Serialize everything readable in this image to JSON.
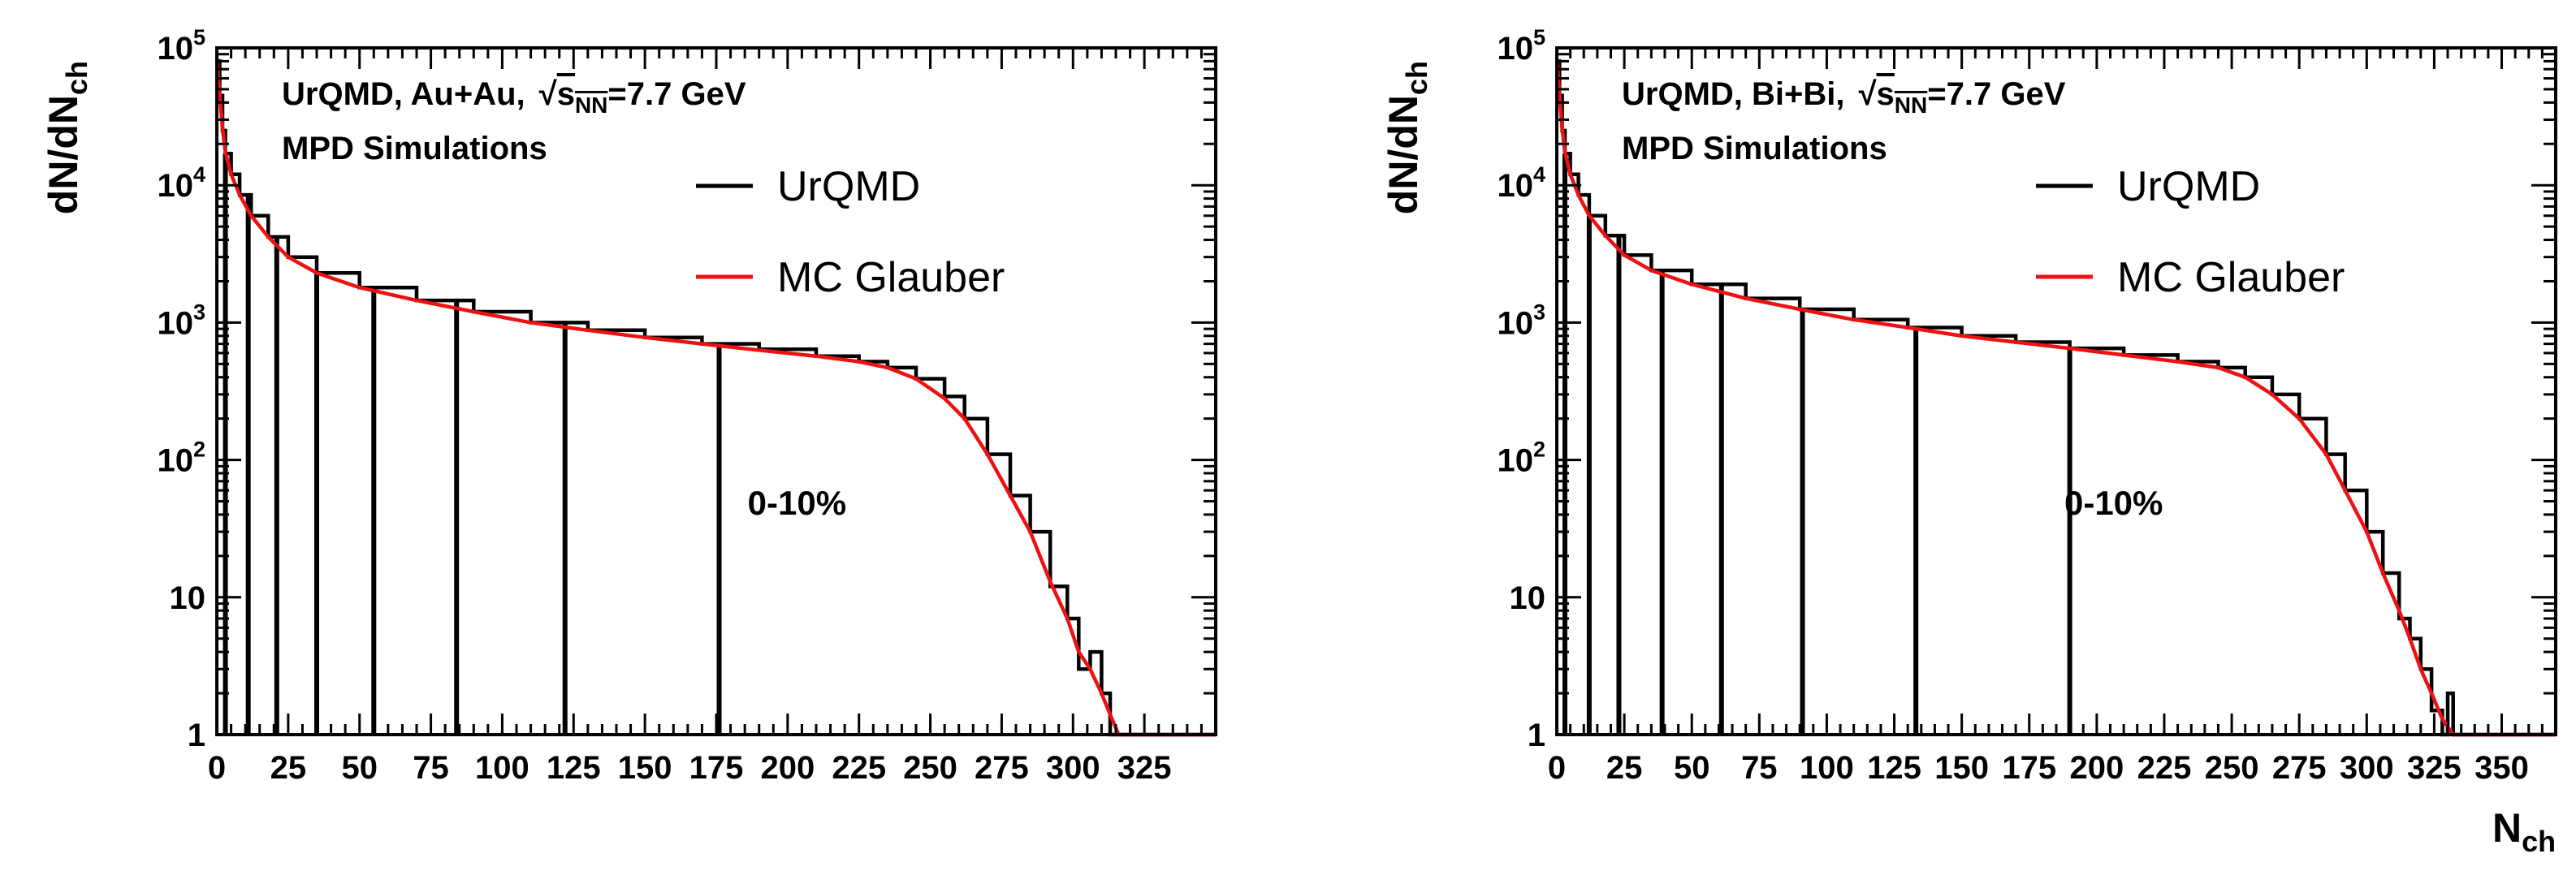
{
  "colors": {
    "urqmd": "#000000",
    "glauber": "#ee1111",
    "background": "#ffffff"
  },
  "chart_data": [
    {
      "type": "histogram",
      "system": "Au+Au",
      "title_prefix": "UrQMD, Au+Au,",
      "sqrt_symbol": "√",
      "energy_var": "s",
      "energy_sub": "NN",
      "energy_value": "=7.7 GeV",
      "subtitle": "MPD Simulations",
      "annotation": "0-10%",
      "annotation_at": {
        "x": 186,
        "y": 40
      },
      "ylabel": {
        "main": "dN/dN",
        "sub": "ch"
      },
      "xlabel": null,
      "xlim": [
        0,
        350
      ],
      "ylim": [
        1,
        100000
      ],
      "yscale": "log",
      "xticks": [
        {
          "v": 0,
          "label": "0"
        },
        {
          "v": 25,
          "label": "25"
        },
        {
          "v": 50,
          "label": "50"
        },
        {
          "v": 75,
          "label": "75"
        },
        {
          "v": 100,
          "label": "100"
        },
        {
          "v": 125,
          "label": "125"
        },
        {
          "v": 150,
          "label": "150"
        },
        {
          "v": 175,
          "label": "175"
        },
        {
          "v": 200,
          "label": "200"
        },
        {
          "v": 225,
          "label": "225"
        },
        {
          "v": 250,
          "label": "250"
        },
        {
          "v": 275,
          "label": "275"
        },
        {
          "v": 300,
          "label": "300"
        },
        {
          "v": 325,
          "label": "325"
        }
      ],
      "yticks": [
        {
          "v": 1,
          "label": "1"
        },
        {
          "v": 10,
          "label": "10"
        },
        {
          "v": 100,
          "base": "10",
          "exp": "2"
        },
        {
          "v": 1000,
          "base": "10",
          "exp": "3"
        },
        {
          "v": 10000,
          "base": "10",
          "exp": "4"
        },
        {
          "v": 100000,
          "base": "10",
          "exp": "5"
        }
      ],
      "legend": [
        {
          "label": "UrQMD",
          "color": "#000000"
        },
        {
          "label": "MC Glauber",
          "color": "#ee1111"
        }
      ],
      "centrality_cuts": [
        3,
        11,
        21,
        35,
        55,
        84,
        122,
        176
      ],
      "series": [
        {
          "name": "UrQMD",
          "x": [
            0,
            1,
            2,
            3,
            5,
            8,
            12,
            18,
            25,
            35,
            50,
            70,
            90,
            110,
            130,
            150,
            170,
            190,
            210,
            225,
            235,
            245,
            255,
            262,
            270,
            278,
            285,
            292,
            298,
            302,
            306,
            310,
            313,
            314,
            350
          ],
          "values": [
            80000,
            45000,
            25000,
            17000,
            12000,
            8500,
            6000,
            4200,
            3000,
            2300,
            1800,
            1450,
            1200,
            1000,
            880,
            780,
            700,
            640,
            570,
            520,
            470,
            390,
            290,
            200,
            110,
            55,
            30,
            12,
            7,
            3,
            4,
            2,
            1,
            1,
            1
          ]
        },
        {
          "name": "MC Glauber",
          "x": [
            0,
            1,
            2,
            3,
            5,
            8,
            12,
            18,
            25,
            35,
            50,
            70,
            90,
            110,
            130,
            150,
            170,
            190,
            210,
            225,
            235,
            245,
            255,
            262,
            270,
            278,
            285,
            292,
            298,
            302,
            306,
            310,
            313,
            316,
            350
          ],
          "values": [
            85000,
            46000,
            26000,
            17500,
            12000,
            8500,
            6000,
            4200,
            3000,
            2300,
            1800,
            1450,
            1200,
            1000,
            880,
            780,
            700,
            630,
            570,
            520,
            470,
            390,
            280,
            200,
            110,
            55,
            30,
            13,
            7,
            4,
            3,
            2,
            1.4,
            1,
            1
          ]
        }
      ]
    },
    {
      "type": "histogram",
      "system": "Bi+Bi",
      "title_prefix": "UrQMD, Bi+Bi,",
      "sqrt_symbol": "√",
      "energy_var": "s",
      "energy_sub": "NN",
      "energy_value": "=7.7 GeV",
      "subtitle": "MPD Simulations",
      "annotation": "0-10%",
      "annotation_at": {
        "x": 188,
        "y": 40
      },
      "ylabel": {
        "main": "dN/dN",
        "sub": "ch"
      },
      "xlabel": {
        "main": "N",
        "sub": "ch"
      },
      "xlim": [
        0,
        370
      ],
      "ylim": [
        1,
        100000
      ],
      "yscale": "log",
      "xticks": [
        {
          "v": 0,
          "label": "0"
        },
        {
          "v": 25,
          "label": "25"
        },
        {
          "v": 50,
          "label": "50"
        },
        {
          "v": 75,
          "label": "75"
        },
        {
          "v": 100,
          "label": "100"
        },
        {
          "v": 125,
          "label": "125"
        },
        {
          "v": 150,
          "label": "150"
        },
        {
          "v": 175,
          "label": "175"
        },
        {
          "v": 200,
          "label": "200"
        },
        {
          "v": 225,
          "label": "225"
        },
        {
          "v": 250,
          "label": "250"
        },
        {
          "v": 275,
          "label": "275"
        },
        {
          "v": 300,
          "label": "300"
        },
        {
          "v": 325,
          "label": "325"
        },
        {
          "v": 350,
          "label": "350"
        }
      ],
      "yticks": [
        {
          "v": 1,
          "label": "1"
        },
        {
          "v": 10,
          "label": "10"
        },
        {
          "v": 100,
          "base": "10",
          "exp": "2"
        },
        {
          "v": 1000,
          "base": "10",
          "exp": "3"
        },
        {
          "v": 10000,
          "base": "10",
          "exp": "4"
        },
        {
          "v": 100000,
          "base": "10",
          "exp": "5"
        }
      ],
      "legend": [
        {
          "label": "UrQMD",
          "color": "#000000"
        },
        {
          "label": "MC Glauber",
          "color": "#ee1111"
        }
      ],
      "centrality_cuts": [
        3,
        12,
        23,
        39,
        61,
        91,
        133,
        190
      ],
      "series": [
        {
          "name": "UrQMD",
          "x": [
            0,
            1,
            2,
            3,
            5,
            8,
            12,
            18,
            25,
            35,
            50,
            70,
            90,
            110,
            130,
            150,
            170,
            190,
            210,
            230,
            245,
            255,
            265,
            275,
            285,
            292,
            300,
            306,
            312,
            316,
            320,
            324,
            328,
            330,
            332,
            370
          ],
          "values": [
            80000,
            45000,
            25000,
            17000,
            12000,
            8500,
            6000,
            4300,
            3100,
            2400,
            1900,
            1500,
            1250,
            1050,
            920,
            800,
            720,
            650,
            580,
            520,
            470,
            400,
            300,
            200,
            110,
            60,
            30,
            15,
            7,
            5,
            3,
            1.5,
            1,
            2,
            1,
            1
          ]
        },
        {
          "name": "MC Glauber",
          "x": [
            0,
            1,
            2,
            3,
            5,
            8,
            12,
            18,
            25,
            35,
            50,
            70,
            90,
            110,
            130,
            150,
            170,
            190,
            210,
            230,
            245,
            255,
            265,
            275,
            285,
            292,
            300,
            306,
            312,
            316,
            320,
            324,
            328,
            332,
            370
          ],
          "values": [
            85000,
            46000,
            26000,
            17500,
            12000,
            8500,
            6000,
            4300,
            3100,
            2400,
            1900,
            1500,
            1250,
            1050,
            920,
            800,
            720,
            650,
            580,
            520,
            470,
            400,
            300,
            200,
            110,
            60,
            30,
            15,
            8,
            5,
            3,
            2,
            1.3,
            1,
            1
          ]
        }
      ]
    }
  ]
}
